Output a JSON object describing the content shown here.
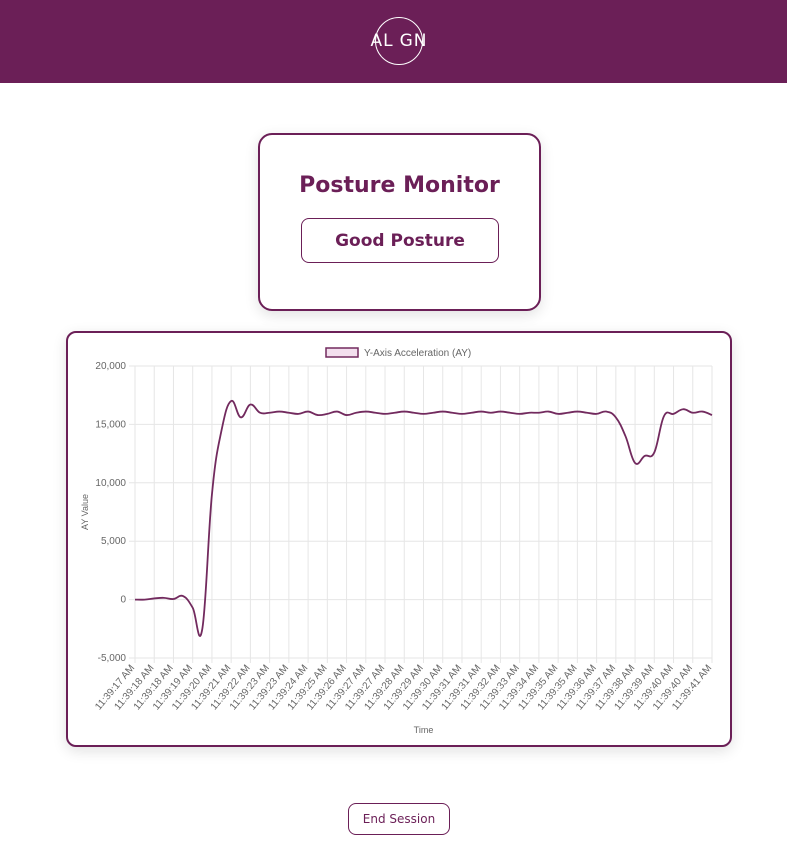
{
  "header": {
    "logo_left": "AL",
    "logo_right": "GN"
  },
  "card": {
    "title": "Posture Monitor",
    "status": "Good Posture"
  },
  "chart_data": {
    "type": "line",
    "x_label": "Time",
    "y_label": "AY Value",
    "categories": [
      "11:39:17 AM",
      null,
      "11:39:18 AM",
      null,
      "11:39:18 AM",
      null,
      "11:39:19 AM",
      null,
      "11:39:20 AM",
      null,
      "11:39:21 AM",
      null,
      "11:39:22 AM",
      null,
      "11:39:23 AM",
      null,
      "11:39:23 AM",
      null,
      "11:39:24 AM",
      null,
      "11:39:25 AM",
      null,
      "11:39:26 AM",
      null,
      "11:39:27 AM",
      null,
      "11:39:27 AM",
      null,
      "11:39:28 AM",
      null,
      "11:39:29 AM",
      null,
      "11:39:30 AM",
      null,
      "11:39:31 AM",
      null,
      "11:39:31 AM",
      null,
      "11:39:32 AM",
      null,
      "11:39:33 AM",
      null,
      "11:39:34 AM",
      null,
      "11:39:35 AM",
      null,
      "11:39:35 AM",
      null,
      "11:39:36 AM",
      null,
      "11:39:37 AM",
      null,
      "11:39:38 AM",
      null,
      "11:39:39 AM",
      null,
      "11:39:40 AM",
      null,
      "11:39:40 AM",
      null,
      "11:39:41 AM"
    ],
    "series": [
      {
        "name": "Y-Axis Acceleration (AY)",
        "color": "#722a5e",
        "fill": "#f3dfee",
        "values": [
          0,
          0,
          100,
          150,
          50,
          300,
          -700,
          -2500,
          9000,
          14500,
          17000,
          15600,
          16700,
          16000,
          16000,
          16100,
          16000,
          15900,
          16100,
          15800,
          15900,
          16100,
          15800,
          16000,
          16100,
          16000,
          15900,
          16000,
          16100,
          16000,
          15900,
          16000,
          16100,
          16000,
          15900,
          16000,
          16100,
          16000,
          16100,
          16000,
          15900,
          16000,
          16000,
          16100,
          15900,
          16000,
          16100,
          16000,
          15900,
          16100,
          15600,
          14000,
          11700,
          12300,
          12600,
          15700,
          15900,
          16300,
          16000,
          16100,
          15800
        ]
      }
    ],
    "ylim": [
      -5000,
      20000
    ],
    "yticks": [
      {
        "value": -5000,
        "label": "-5,000"
      },
      0,
      {
        "value": 5000,
        "label": "5,000"
      },
      {
        "value": 10000,
        "label": "10,000"
      },
      {
        "value": 15000,
        "label": "15,000"
      },
      {
        "value": 20000,
        "label": "20,000"
      }
    ],
    "grid": true,
    "legend": "top"
  },
  "footer": {
    "button": "End Session"
  }
}
